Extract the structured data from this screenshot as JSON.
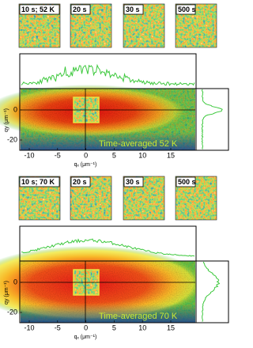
{
  "panels": [
    {
      "snapshots": [
        "10 s; 52 K",
        "20 s",
        "30 s",
        "500 s"
      ],
      "caption": "Time-averaged 52 K",
      "yticks": [
        "0",
        "-20"
      ],
      "xticks": [
        "-10",
        "-5",
        "0",
        "5",
        "10",
        "15"
      ],
      "ylabel": "qy (μm⁻¹)",
      "xlabel": "qₓ (μm⁻¹)"
    },
    {
      "snapshots": [
        "10 s; 70 K",
        "20 s",
        "30 s",
        "500 s"
      ],
      "caption": "Time-averaged 70 K",
      "yticks": [
        "0",
        "-20"
      ],
      "xticks": [
        "-10",
        "-5",
        "0",
        "5",
        "10",
        "15"
      ],
      "ylabel": "qy (μm⁻¹)",
      "xlabel": "qₓ (μm⁻¹)"
    }
  ]
}
